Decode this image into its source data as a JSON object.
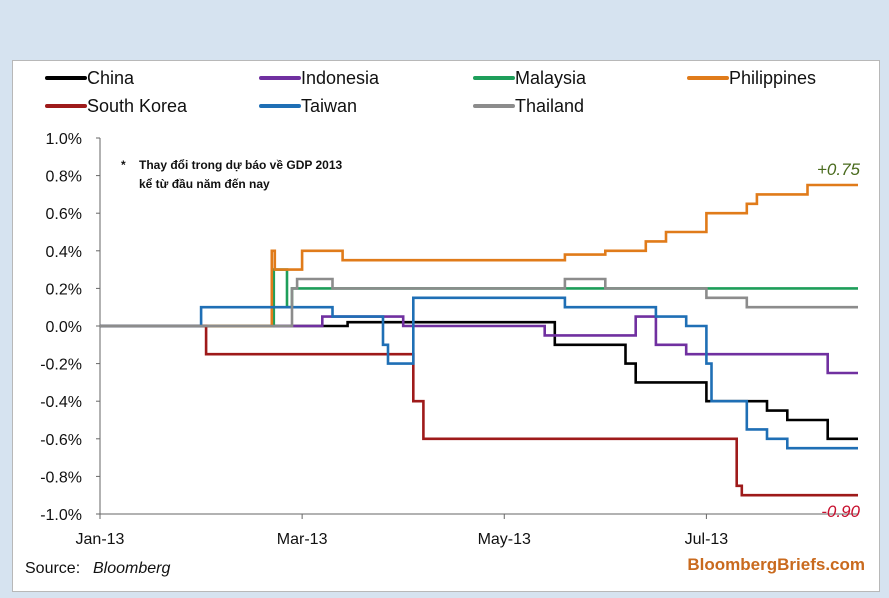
{
  "chart_data": {
    "type": "line",
    "note_line1": "Thay đổi trong dự báo về GDP 2013",
    "note_line2": "kể từ đầu năm đến nay",
    "note_marker": "*",
    "ylim": [
      -1.0,
      1.0
    ],
    "yticks": [
      "1.0%",
      "0.8%",
      "0.6%",
      "0.4%",
      "0.2%",
      "0.0%",
      "-0.2%",
      "-0.4%",
      "-0.6%",
      "-0.8%",
      "-1.0%"
    ],
    "xticks": [
      "Jan-13",
      "Mar-13",
      "May-13",
      "Jul-13"
    ],
    "annotations": [
      {
        "text": "+0.75",
        "series": "Philippines",
        "color": "#4a6b1e"
      },
      {
        "text": "-0.90",
        "series": "South Korea",
        "color": "#c8102e"
      }
    ],
    "source_label": "Source:",
    "source_name": "Bloomberg",
    "brand": "BloombergBriefs.com",
    "series": [
      {
        "name": "China",
        "color": "#000000",
        "points": [
          [
            0,
            0
          ],
          [
            2.45,
            0
          ],
          [
            2.45,
            0.02
          ],
          [
            4.5,
            0.02
          ],
          [
            4.5,
            -0.1
          ],
          [
            5.2,
            -0.1
          ],
          [
            5.2,
            -0.2
          ],
          [
            5.3,
            -0.2
          ],
          [
            5.3,
            -0.3
          ],
          [
            6.0,
            -0.3
          ],
          [
            6.0,
            -0.4
          ],
          [
            6.6,
            -0.4
          ],
          [
            6.6,
            -0.45
          ],
          [
            6.8,
            -0.45
          ],
          [
            6.8,
            -0.5
          ],
          [
            7.2,
            -0.5
          ],
          [
            7.2,
            -0.6
          ],
          [
            7.5,
            -0.6
          ]
        ]
      },
      {
        "name": "Indonesia",
        "color": "#7030a0",
        "points": [
          [
            0,
            0
          ],
          [
            2.2,
            0
          ],
          [
            2.2,
            0.05
          ],
          [
            3.0,
            0.05
          ],
          [
            3.0,
            0
          ],
          [
            4.4,
            0
          ],
          [
            4.4,
            -0.05
          ],
          [
            5.3,
            -0.05
          ],
          [
            5.3,
            0.05
          ],
          [
            5.5,
            0.05
          ],
          [
            5.5,
            -0.1
          ],
          [
            5.8,
            -0.1
          ],
          [
            5.8,
            -0.15
          ],
          [
            7.2,
            -0.15
          ],
          [
            7.2,
            -0.25
          ],
          [
            7.5,
            -0.25
          ]
        ]
      },
      {
        "name": "Malaysia",
        "color": "#1e9e5a",
        "points": [
          [
            0,
            0
          ],
          [
            1.72,
            0
          ],
          [
            1.72,
            0.3
          ],
          [
            1.85,
            0.3
          ],
          [
            1.85,
            0.1
          ],
          [
            1.9,
            0.1
          ],
          [
            1.9,
            0.2
          ],
          [
            7.5,
            0.2
          ]
        ]
      },
      {
        "name": "Philippines",
        "color": "#e07b1a",
        "points": [
          [
            0,
            0
          ],
          [
            1.7,
            0
          ],
          [
            1.7,
            0.4
          ],
          [
            1.73,
            0.4
          ],
          [
            1.73,
            0.3
          ],
          [
            2.0,
            0.3
          ],
          [
            2.0,
            0.4
          ],
          [
            2.4,
            0.4
          ],
          [
            2.4,
            0.35
          ],
          [
            4.6,
            0.35
          ],
          [
            4.6,
            0.38
          ],
          [
            5.0,
            0.38
          ],
          [
            5.0,
            0.4
          ],
          [
            5.4,
            0.4
          ],
          [
            5.4,
            0.45
          ],
          [
            5.6,
            0.45
          ],
          [
            5.6,
            0.5
          ],
          [
            6.0,
            0.5
          ],
          [
            6.0,
            0.6
          ],
          [
            6.4,
            0.6
          ],
          [
            6.4,
            0.65
          ],
          [
            6.5,
            0.65
          ],
          [
            6.5,
            0.7
          ],
          [
            7.0,
            0.7
          ],
          [
            7.0,
            0.75
          ],
          [
            7.5,
            0.75
          ]
        ]
      },
      {
        "name": "South Korea",
        "color": "#9e1a1a",
        "points": [
          [
            0,
            0
          ],
          [
            1.05,
            0
          ],
          [
            1.05,
            -0.15
          ],
          [
            3.1,
            -0.15
          ],
          [
            3.1,
            -0.4
          ],
          [
            3.2,
            -0.4
          ],
          [
            3.2,
            -0.6
          ],
          [
            6.3,
            -0.6
          ],
          [
            6.3,
            -0.85
          ],
          [
            6.35,
            -0.85
          ],
          [
            6.35,
            -0.9
          ],
          [
            7.5,
            -0.9
          ]
        ]
      },
      {
        "name": "Taiwan",
        "color": "#1f6fb5",
        "points": [
          [
            0,
            0
          ],
          [
            1.0,
            0
          ],
          [
            1.0,
            0.1
          ],
          [
            2.3,
            0.1
          ],
          [
            2.3,
            0.05
          ],
          [
            2.8,
            0.05
          ],
          [
            2.8,
            -0.1
          ],
          [
            2.85,
            -0.1
          ],
          [
            2.85,
            -0.2
          ],
          [
            3.1,
            -0.2
          ],
          [
            3.1,
            0.15
          ],
          [
            4.6,
            0.15
          ],
          [
            4.6,
            0.1
          ],
          [
            5.5,
            0.1
          ],
          [
            5.5,
            0.05
          ],
          [
            5.8,
            0.05
          ],
          [
            5.8,
            0
          ],
          [
            6.0,
            0
          ],
          [
            6.0,
            -0.2
          ],
          [
            6.05,
            -0.2
          ],
          [
            6.05,
            -0.4
          ],
          [
            6.4,
            -0.4
          ],
          [
            6.4,
            -0.55
          ],
          [
            6.6,
            -0.55
          ],
          [
            6.6,
            -0.6
          ],
          [
            6.8,
            -0.6
          ],
          [
            6.8,
            -0.65
          ],
          [
            7.5,
            -0.65
          ]
        ]
      },
      {
        "name": "Thailand",
        "color": "#8c8c8c",
        "points": [
          [
            0,
            0
          ],
          [
            1.9,
            0
          ],
          [
            1.9,
            0.2
          ],
          [
            1.95,
            0.2
          ],
          [
            1.95,
            0.25
          ],
          [
            2.3,
            0.25
          ],
          [
            2.3,
            0.2
          ],
          [
            4.6,
            0.2
          ],
          [
            4.6,
            0.25
          ],
          [
            5.0,
            0.25
          ],
          [
            5.0,
            0.2
          ],
          [
            6.0,
            0.2
          ],
          [
            6.0,
            0.15
          ],
          [
            6.4,
            0.15
          ],
          [
            6.4,
            0.1
          ],
          [
            7.5,
            0.1
          ]
        ]
      }
    ]
  }
}
